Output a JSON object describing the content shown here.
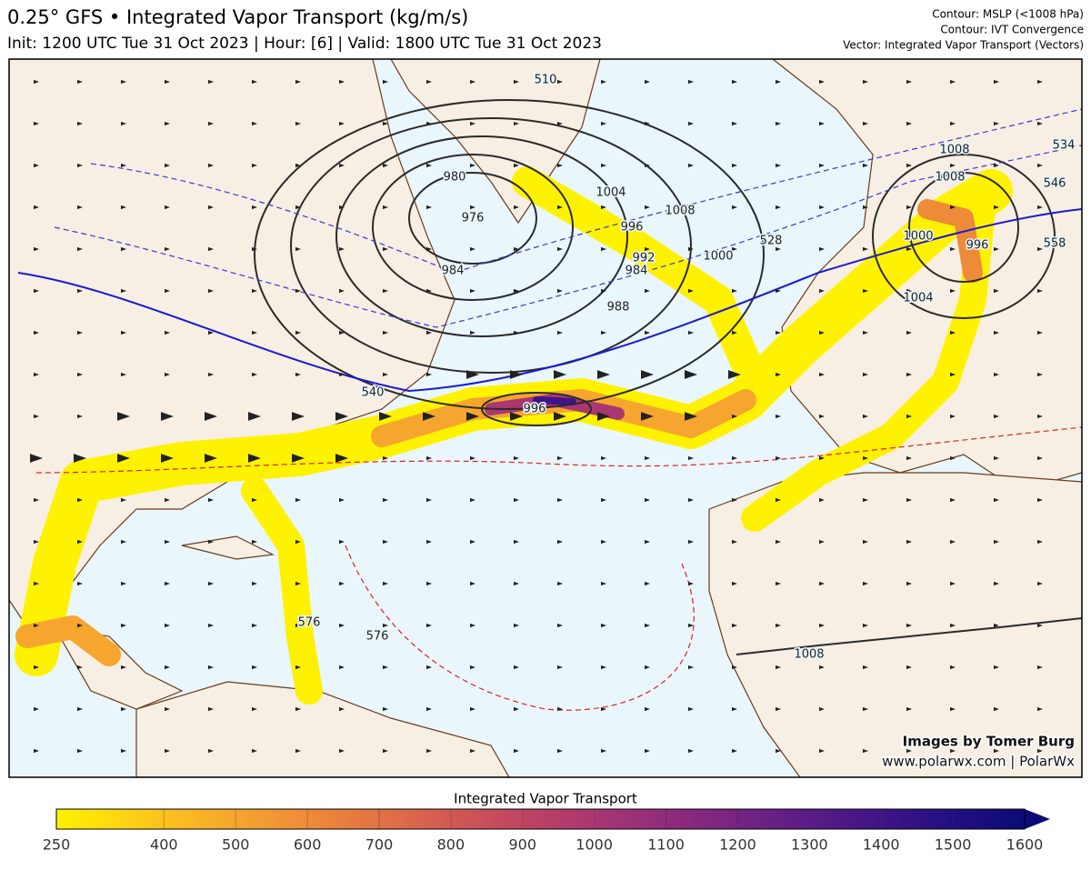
{
  "header": {
    "title": "0.25° GFS • Integrated Vapor Transport (kg/m/s)",
    "subtitle": "Init: 1200 UTC Tue 31 Oct 2023 | Hour: [6] | Valid: 1800 UTC Tue 31 Oct 2023",
    "legend_notes": [
      "Contour: MSLP (<1008 hPa)",
      "Contour: IVT Convergence",
      "Vector: Integrated Vapor Transport (Vectors)"
    ]
  },
  "map": {
    "contour_labels": [
      "510",
      "1008",
      "534",
      "546",
      "528",
      "1004",
      "1008",
      "996",
      "1000",
      "992",
      "980",
      "976",
      "984",
      "984",
      "988",
      "996",
      "540",
      "996",
      "1000",
      "1004",
      "1008",
      "576",
      "576",
      "1008",
      "558"
    ]
  },
  "credits": [
    "Images by Tomer Burg",
    "www.polarwx.com | PolarWx"
  ],
  "colorbar": {
    "title": "Integrated Vapor Transport",
    "range": [
      250,
      1600
    ],
    "ticks": [
      250,
      400,
      500,
      600,
      700,
      800,
      900,
      1000,
      1100,
      1200,
      1300,
      1400,
      1500,
      1600
    ],
    "colors": [
      "#fff200",
      "#fbc21f",
      "#f6a52e",
      "#ee8b39",
      "#e27245",
      "#d25953",
      "#bf4462",
      "#a93770",
      "#902c7b",
      "#762482",
      "#5a1c86",
      "#3e1586",
      "#230f82",
      "#0b0a78"
    ],
    "extend_color": "#0b0a78"
  }
}
